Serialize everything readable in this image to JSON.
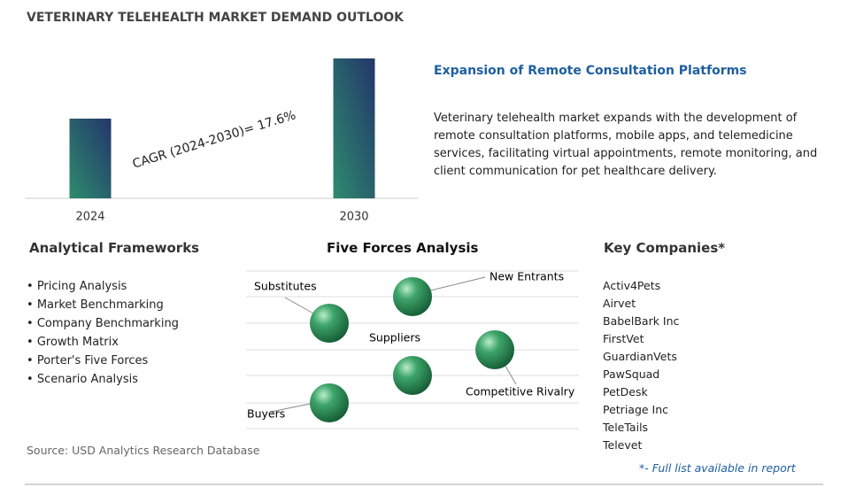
{
  "header": {
    "title": "VETERINARY TELEHEALTH MARKET DEMAND OUTLOOK"
  },
  "chart_data": {
    "type": "bar",
    "categories": [
      "2024",
      "2030"
    ],
    "values": [
      57,
      100
    ],
    "ylim": [
      0,
      100
    ],
    "annotation": "CAGR (2024-2030)=  17.6%"
  },
  "highlight": {
    "heading": "Expansion of Remote Consultation Platforms",
    "text": "Veterinary telehealth market expands with the development of remote consultation platforms, mobile apps, and telemedicine services, facilitating virtual appointments, remote monitoring, and client communication for pet healthcare delivery."
  },
  "frameworks": {
    "heading": "Analytical Frameworks",
    "items": [
      "Pricing Analysis",
      "Market Benchmarking",
      "Company Benchmarking",
      "Growth Matrix",
      "Porter's Five Forces",
      "Scenario Analysis"
    ]
  },
  "five_forces": {
    "heading": "Five Forces Analysis",
    "labels": [
      "Substitutes",
      "New Entrants",
      "Suppliers",
      "Competitive Rivalry",
      "Buyers"
    ]
  },
  "companies": {
    "heading": "Key Companies*",
    "items": [
      "Activ4Pets",
      "Airvet",
      "BabelBark Inc",
      "FirstVet",
      "GuardianVets",
      "PawSquad",
      "PetDesk",
      "Petriage Inc",
      "TeleTails",
      "Televet"
    ],
    "note": "*- Full list available in report"
  },
  "footer": {
    "source": "Source: USD Analytics Research Database"
  }
}
